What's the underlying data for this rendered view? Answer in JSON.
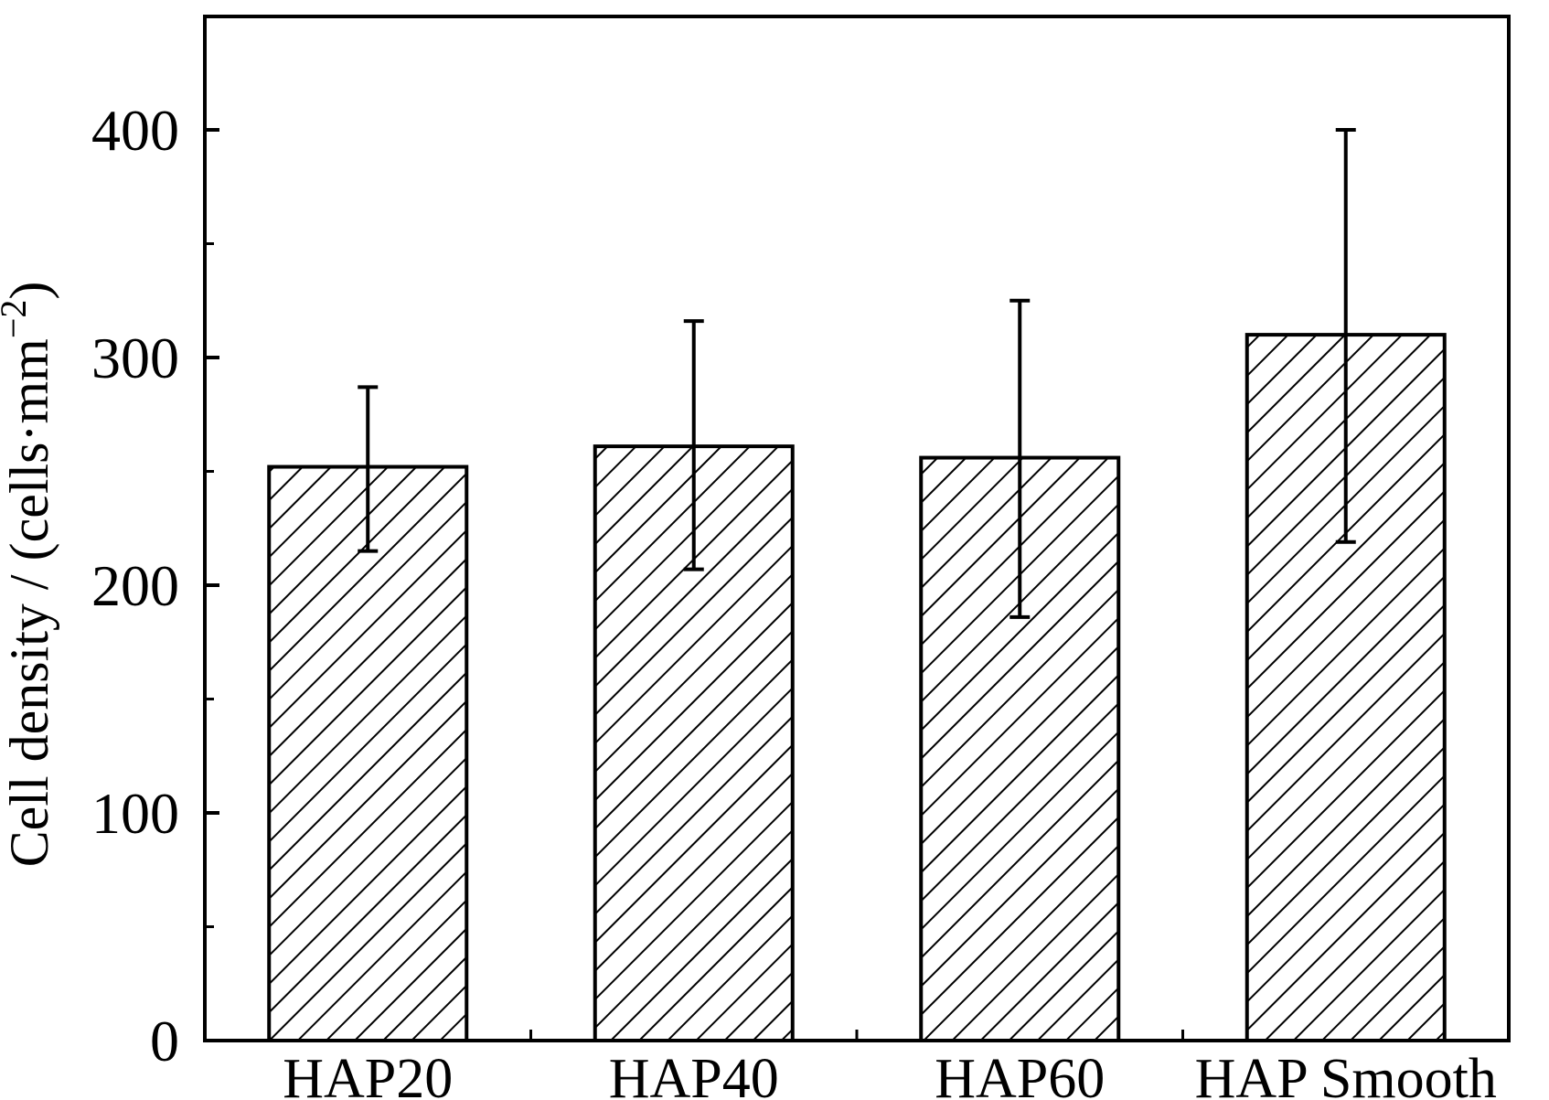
{
  "chart_data": {
    "type": "bar",
    "title": "",
    "xlabel": "",
    "ylabel": "Cell density / (cells·mm",
    "ylabel_superscript": "−2",
    "ylabel_close": ")",
    "categories": [
      "HAP20",
      "HAP40",
      "HAP60",
      "HAP Smooth"
    ],
    "values": [
      252,
      261,
      256,
      310
    ],
    "error_low": [
      215,
      207,
      186,
      219
    ],
    "error_high": [
      287,
      316,
      325,
      400
    ],
    "ylim": [
      0,
      450
    ],
    "yticks": [
      0,
      100,
      200,
      300,
      400
    ],
    "ytick_labels": [
      "0",
      "100",
      "200",
      "300",
      "400"
    ],
    "minor_yticks": [
      50,
      150,
      250,
      350
    ],
    "grid": false,
    "bar_fill": "diagonal-hatch",
    "colors": {
      "bar_stroke": "#000000",
      "hatch": "#000000",
      "background": "#ffffff"
    }
  }
}
